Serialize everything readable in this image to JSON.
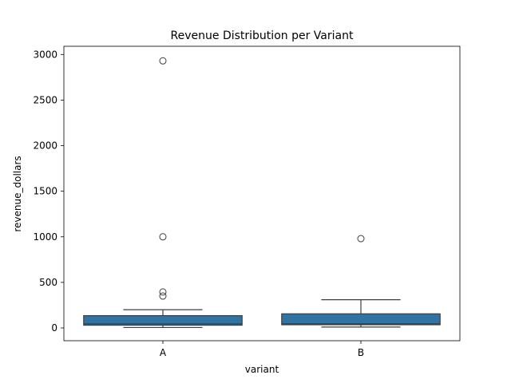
{
  "chart_data": {
    "type": "box",
    "title": "Revenue Distribution per Variant",
    "xlabel": "variant",
    "ylabel": "revenue_dollars",
    "categories": [
      "A",
      "B"
    ],
    "yticks": [
      0,
      500,
      1000,
      1500,
      2000,
      2500,
      3000
    ],
    "ytick_labels": [
      "0",
      "500",
      "1000",
      "1500",
      "2000",
      "2500",
      "3000"
    ],
    "ylim": [
      -140,
      3090
    ],
    "grid": false,
    "box_color": "#3274a1",
    "line_color": "#3d3d3d",
    "boxes": [
      {
        "category": "A",
        "whisker_low": 5,
        "q1": 30,
        "median": 45,
        "q3": 135,
        "whisker_high": 200,
        "outliers": [
          350,
          395,
          1000,
          2930
        ]
      },
      {
        "category": "B",
        "whisker_low": 10,
        "q1": 35,
        "median": 45,
        "q3": 155,
        "whisker_high": 310,
        "outliers": [
          980
        ]
      }
    ]
  }
}
